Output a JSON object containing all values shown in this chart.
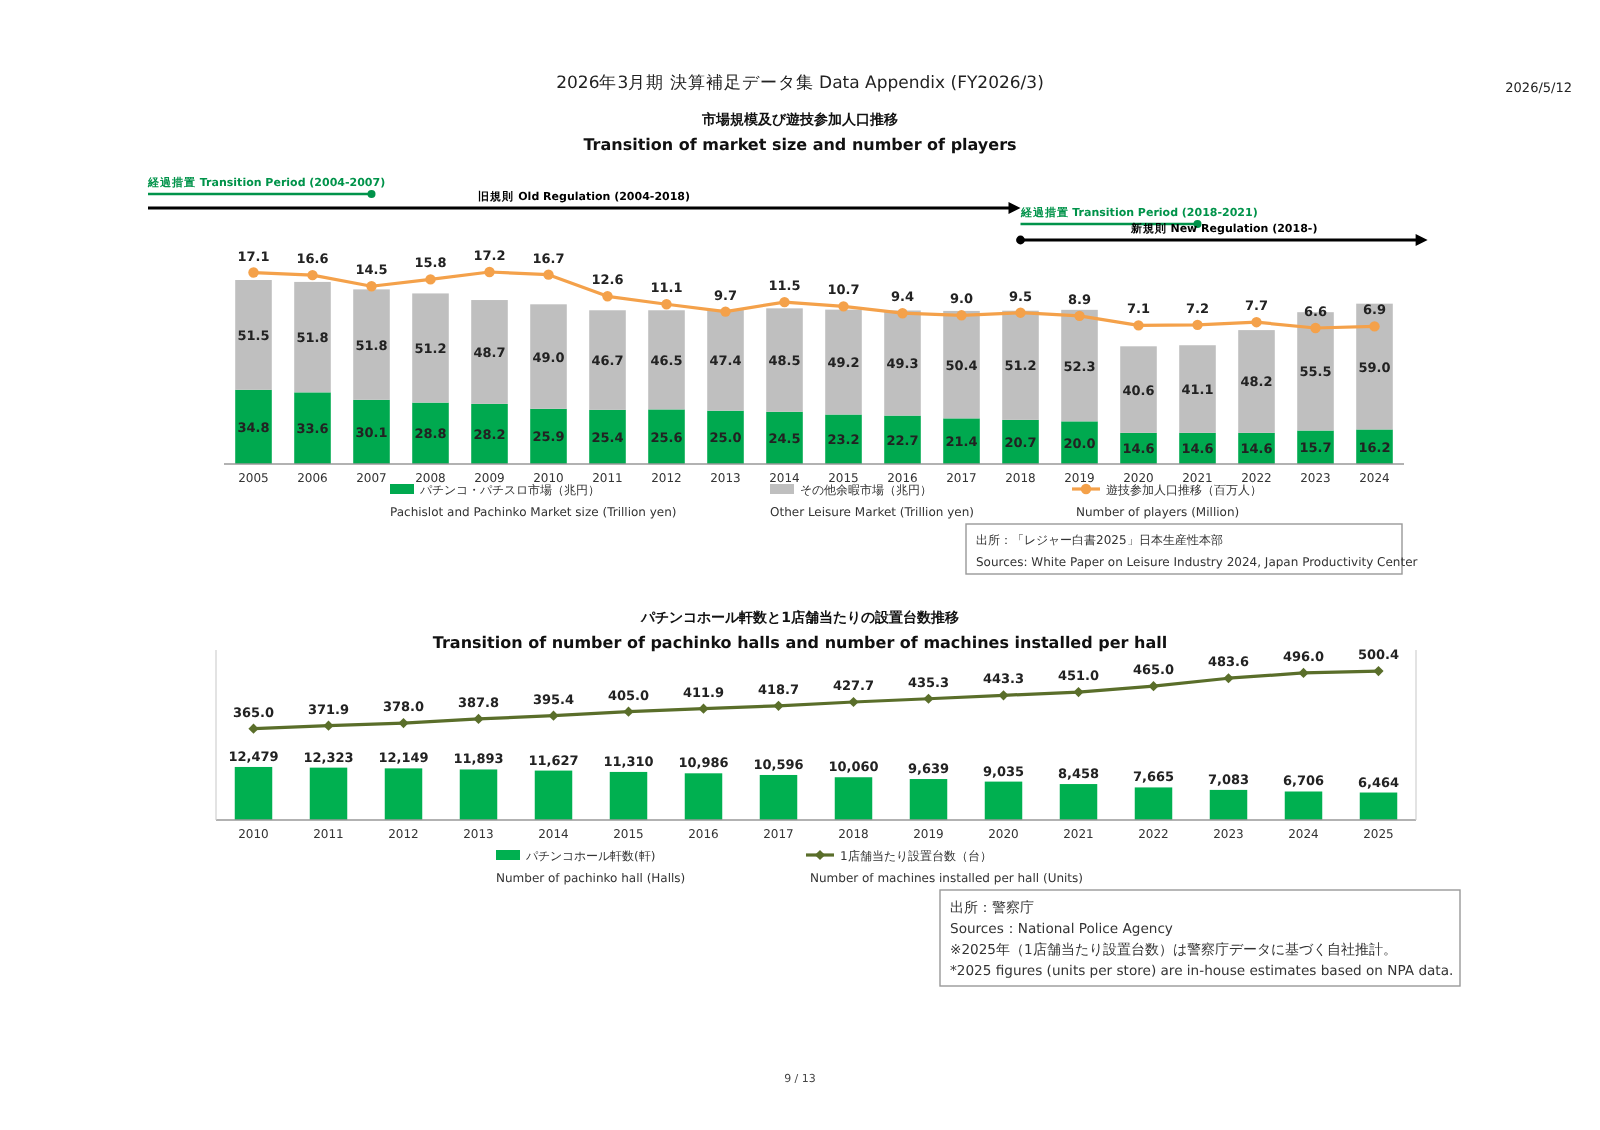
{
  "chart_data": [
    {
      "type": "bar",
      "title": "市場規模及び遊技参加人口推移",
      "subtitle": "Transition of market size and number of players",
      "categories": [
        "2005",
        "2006",
        "2007",
        "2008",
        "2009",
        "2010",
        "2011",
        "2012",
        "2013",
        "2014",
        "2015",
        "2016",
        "2017",
        "2018",
        "2019",
        "2020",
        "2021",
        "2022",
        "2023",
        "2024"
      ],
      "stacked": true,
      "legend": "bottom",
      "tick_labels": "x",
      "marker": "circle",
      "series": [
        {
          "name": "パチンコ・パチスロ市場（兆円）\nPachislot and Pachinko Market size (Trillion yen)",
          "color": "#00a94f",
          "values": [
            34.8,
            33.6,
            30.1,
            28.8,
            28.2,
            25.9,
            25.4,
            25.6,
            25.0,
            24.5,
            23.2,
            22.7,
            21.4,
            20.7,
            20.0,
            14.6,
            14.6,
            14.6,
            15.7,
            16.2
          ],
          "value_labels": [
            "34.8",
            "33.6",
            "30.1",
            "28.8",
            "28.2",
            "25.9",
            "25.4",
            "25.6",
            "25.0",
            "24.5",
            "23.2",
            "22.7",
            "21.4",
            "20.7",
            "20.0",
            "14.6",
            "14.6",
            "14.6",
            "15.7",
            "16.2"
          ]
        },
        {
          "name": "その他余暇市場（兆円）\nOther Leisure Market (Trillion yen)",
          "color": "#bfbfbf",
          "values": [
            51.5,
            51.8,
            51.8,
            51.2,
            48.7,
            49.0,
            46.7,
            46.5,
            47.4,
            48.5,
            49.2,
            49.3,
            50.4,
            51.2,
            52.3,
            40.6,
            41.1,
            48.2,
            55.5,
            59.0
          ],
          "value_labels": [
            "51.5",
            "51.8",
            "51.8",
            "51.2",
            "48.7",
            "49.0",
            "46.7",
            "46.5",
            "47.4",
            "48.5",
            "49.2",
            "49.3",
            "50.4",
            "51.2",
            "52.3",
            "40.6",
            "41.1",
            "48.2",
            "55.5",
            "59.0"
          ]
        },
        {
          "type": "line",
          "axis": "y2",
          "name": "遊技参加人口推移（百万人）\nNumber of players (Million)",
          "color": "#f4a14a",
          "values": [
            17.1,
            16.6,
            14.5,
            15.8,
            17.2,
            16.7,
            12.6,
            11.1,
            9.7,
            11.5,
            10.7,
            9.4,
            9.0,
            9.5,
            8.9,
            7.1,
            7.2,
            7.7,
            6.6,
            6.9
          ],
          "value_labels": [
            "17.1",
            "16.6",
            "14.5",
            "15.8",
            "17.2",
            "16.7",
            "12.6",
            "11.1",
            "9.7",
            "11.5",
            "10.7",
            "9.4",
            "9.0",
            "9.5",
            "8.9",
            "7.1",
            "7.2",
            "7.7",
            "6.6",
            "6.9"
          ]
        }
      ],
      "annotations": [
        "経過措置 Transition Period (2004-2007)",
        "旧規則 Old Regulation (2004-2018)",
        "経過措置 Transition Period (2018-2021)",
        "新規則 New Regulation (2018-)",
        "出所：「レジャー白書2025」日本生産性本部",
        "Sources: White Paper on Leisure Industry 2024, Japan Productivity Center",
        "2026年3月期 決算補足データ集  Data Appendix (FY2026/3)",
        "2026/5/12",
        "9 / 13"
      ]
    },
    {
      "type": "bar",
      "title": "パチンコホール軒数と1店舗当たりの設置台数推移",
      "subtitle": "Transition of number of pachinko halls and number of machines installed per hall",
      "categories": [
        "2010",
        "2011",
        "2012",
        "2013",
        "2014",
        "2015",
        "2016",
        "2017",
        "2018",
        "2019",
        "2020",
        "2021",
        "2022",
        "2023",
        "2024",
        "2025"
      ],
      "legend": "bottom",
      "tick_labels": "x",
      "marker": "diamond",
      "ylim": [
        0,
        40000
      ],
      "y2lim": [
        150,
        550
      ],
      "series": [
        {
          "name": "パチンコホール軒数(軒)\nNumber of pachinko hall (Halls)",
          "color": "#00b050",
          "values": [
            12479,
            12323,
            12149,
            11893,
            11627,
            11310,
            10986,
            10596,
            10060,
            9639,
            9035,
            8458,
            7665,
            7083,
            6706,
            6464
          ],
          "value_labels": [
            "12,479",
            "12,323",
            "12,149",
            "11,893",
            "11,627",
            "11,310",
            "10,986",
            "10,596",
            "10,060",
            "9,639",
            "9,035",
            "8,458",
            "7,665",
            "7,083",
            "6,706",
            "6,464"
          ]
        },
        {
          "type": "line",
          "axis": "y2",
          "name": "1店舗当たり設置台数（台）\nNumber of machines installed per hall (Units)",
          "color": "#5a6e2a",
          "values": [
            365.0,
            371.9,
            378.0,
            387.8,
            395.4,
            405.0,
            411.9,
            418.7,
            427.7,
            435.3,
            443.3,
            451.0,
            465.0,
            483.6,
            496.0,
            500.4
          ],
          "value_labels": [
            "365.0",
            "371.9",
            "378.0",
            "387.8",
            "395.4",
            "405.0",
            "411.9",
            "418.7",
            "427.7",
            "435.3",
            "443.3",
            "451.0",
            "465.0",
            "483.6",
            "496.0",
            "500.4"
          ]
        }
      ],
      "annotations": [
        "出所：警察庁",
        "Sources：National Police Agency",
        "※2025年（1店舗当たり設置台数）は警察庁データに基づく自社推計。",
        "*2025 figures (units per store) are in-house estimates based on NPA data."
      ]
    }
  ]
}
